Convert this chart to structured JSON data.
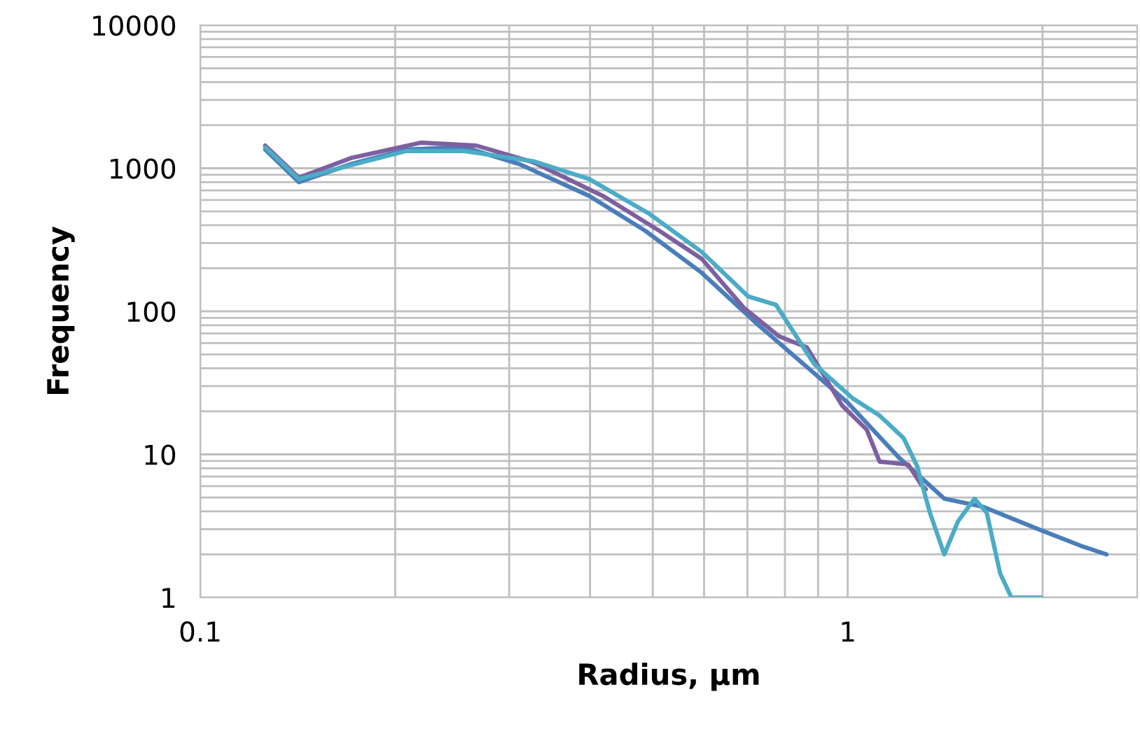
{
  "chart_data": {
    "type": "line",
    "xlabel": "Radius, µm",
    "ylabel": "Frequency",
    "log": "xy",
    "grid": true,
    "marker": "none",
    "line_style": "solid",
    "xlim": [
      0.1,
      2.8
    ],
    "ylim": [
      1,
      10000
    ],
    "xticks": [
      0.1,
      {
        "value": 0.2,
        "label": null
      },
      {
        "value": 0.3,
        "label": null
      },
      {
        "value": 0.4,
        "label": null
      },
      {
        "value": 0.5,
        "label": null
      },
      {
        "value": 0.6,
        "label": null
      },
      {
        "value": 0.7,
        "label": null
      },
      {
        "value": 0.8,
        "label": null
      },
      {
        "value": 0.9,
        "label": null
      },
      1,
      {
        "value": 2,
        "label": null
      }
    ],
    "yticks": [
      1,
      {
        "value": 2,
        "label": null
      },
      {
        "value": 3,
        "label": null
      },
      {
        "value": 4,
        "label": null
      },
      {
        "value": 5,
        "label": null
      },
      {
        "value": 6,
        "label": null
      },
      {
        "value": 7,
        "label": null
      },
      {
        "value": 8,
        "label": null
      },
      {
        "value": 9,
        "label": null
      },
      10,
      {
        "value": 20,
        "label": null
      },
      {
        "value": 30,
        "label": null
      },
      {
        "value": 40,
        "label": null
      },
      {
        "value": 50,
        "label": null
      },
      {
        "value": 60,
        "label": null
      },
      {
        "value": 70,
        "label": null
      },
      {
        "value": 80,
        "label": null
      },
      {
        "value": 90,
        "label": null
      },
      100,
      {
        "value": 200,
        "label": null
      },
      {
        "value": 300,
        "label": null
      },
      {
        "value": 400,
        "label": null
      },
      {
        "value": 500,
        "label": null
      },
      {
        "value": 600,
        "label": null
      },
      {
        "value": 700,
        "label": null
      },
      {
        "value": 800,
        "label": null
      },
      {
        "value": 900,
        "label": null
      },
      1000,
      {
        "value": 2000,
        "label": null
      },
      {
        "value": 3000,
        "label": null
      },
      {
        "value": 4000,
        "label": null
      },
      {
        "value": 5000,
        "label": null
      },
      {
        "value": 6000,
        "label": null
      },
      {
        "value": 7000,
        "label": null
      },
      {
        "value": 8000,
        "label": null
      },
      {
        "value": 9000,
        "label": null
      },
      10000
    ],
    "series": [
      {
        "color": "#4a7ebb",
        "x": [
          0.126,
          0.142,
          0.171,
          0.208,
          0.255,
          0.311,
          0.399,
          0.487,
          0.595,
          0.726,
          0.887,
          1.0,
          1.2,
          1.41,
          1.62,
          1.97,
          2.29,
          2.51
        ],
        "values": [
          1350,
          800,
          1070,
          1350,
          1410,
          1070,
          640,
          365,
          186,
          81,
          37,
          23,
          9.5,
          4.9,
          4.3,
          3.0,
          2.3,
          2.0
        ]
      },
      {
        "color": "#7d60a0",
        "x": [
          0.126,
          0.142,
          0.171,
          0.219,
          0.267,
          0.327,
          0.419,
          0.512,
          0.595,
          0.691,
          0.783,
          0.865,
          0.98,
          1.07,
          1.12,
          1.24,
          1.3,
          1.32
        ],
        "values": [
          1440,
          860,
          1180,
          1510,
          1440,
          1100,
          640,
          365,
          233,
          106,
          67,
          56,
          22,
          14.9,
          8.9,
          8.5,
          6.1,
          5.7
        ]
      },
      {
        "color": "#4bacc6",
        "x": [
          0.126,
          0.142,
          0.171,
          0.208,
          0.255,
          0.327,
          0.399,
          0.494,
          0.595,
          0.702,
          0.775,
          0.887,
          1.02,
          1.12,
          1.22,
          1.28,
          1.34,
          1.41,
          1.48,
          1.57,
          1.64,
          1.72,
          1.79,
          1.99
        ],
        "values": [
          1400,
          840,
          1050,
          1320,
          1320,
          1120,
          840,
          480,
          260,
          127,
          111,
          43,
          24.5,
          18.7,
          13,
          8.3,
          3.9,
          2.0,
          3.4,
          4.9,
          3.9,
          1.47,
          1.0,
          1.0
        ]
      }
    ]
  }
}
